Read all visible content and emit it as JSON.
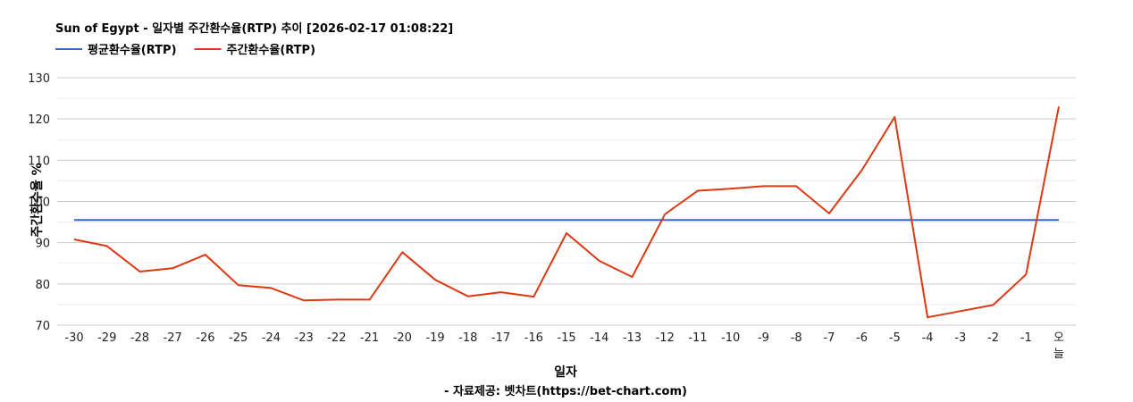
{
  "chart_data": {
    "type": "line",
    "title": "Sun of Egypt - 일자별 주간환수율(RTP) 추이 [2026-02-17 01:08:22]",
    "xlabel": "일자",
    "ylabel": "주간환수율 %",
    "footer": "- 자료제공: 벳차트(https://bet-chart.com)",
    "categories": [
      "-30",
      "-29",
      "-28",
      "-27",
      "-26",
      "-25",
      "-24",
      "-23",
      "-22",
      "-21",
      "-20",
      "-19",
      "-18",
      "-17",
      "-16",
      "-15",
      "-14",
      "-13",
      "-12",
      "-11",
      "-10",
      "-9",
      "-8",
      "-7",
      "-6",
      "-5",
      "-4",
      "-3",
      "-2",
      "-1",
      "오늘"
    ],
    "ylim": [
      70,
      130
    ],
    "yticks": [
      70,
      80,
      90,
      100,
      110,
      120,
      130
    ],
    "grid": true,
    "legend_position": "top-left",
    "series": [
      {
        "name": "평균환수율(RTP)",
        "color": "#3366cc",
        "values": [
          95.5,
          95.5,
          95.5,
          95.5,
          95.5,
          95.5,
          95.5,
          95.5,
          95.5,
          95.5,
          95.5,
          95.5,
          95.5,
          95.5,
          95.5,
          95.5,
          95.5,
          95.5,
          95.5,
          95.5,
          95.5,
          95.5,
          95.5,
          95.5,
          95.5,
          95.5,
          95.5,
          95.5,
          95.5,
          95.5,
          95.5
        ]
      },
      {
        "name": "주간환수율(RTP)",
        "color": "#dc3912",
        "values": [
          90.8,
          89.2,
          83,
          83.8,
          87.1,
          79.7,
          79,
          76,
          76.2,
          76.2,
          87.7,
          81,
          77,
          78,
          76.9,
          92.3,
          85.6,
          81.7,
          96.9,
          102.6,
          103.1,
          103.7,
          103.7,
          97.1,
          107.6,
          120.5,
          71.9,
          73.4,
          74.9,
          82.3,
          123
        ]
      }
    ]
  }
}
